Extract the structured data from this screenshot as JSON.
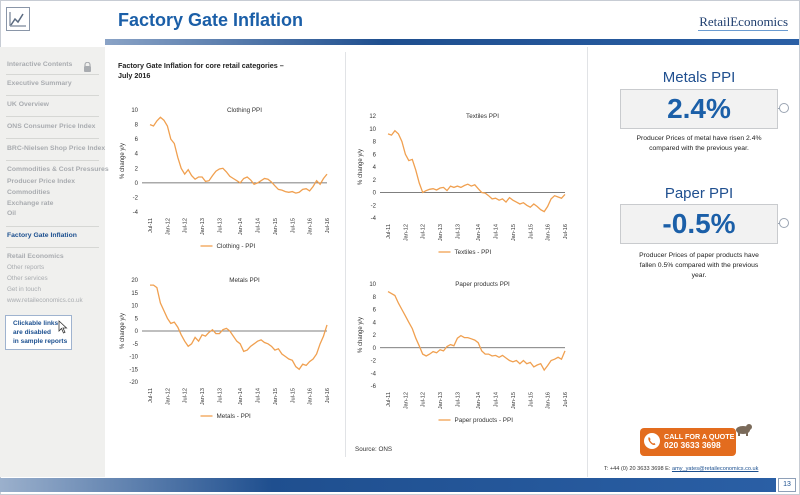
{
  "header": {
    "title": "Factory Gate Inflation",
    "brand_a": "Retail",
    "brand_b": "Economics"
  },
  "sidebar": {
    "items": [
      {
        "label": "Interactive Contents",
        "style": "head"
      },
      {
        "label": "Executive Summary",
        "style": "head"
      },
      {
        "label": "UK Overview",
        "style": "head"
      },
      {
        "label": "ONS Consumer Price Index",
        "style": "head"
      },
      {
        "label": "BRC-Nielsen Shop Price Index",
        "style": "head"
      },
      {
        "label": "Commodities & Cost Pressures",
        "style": "head"
      },
      {
        "label": "Producer Price Index",
        "style": "head"
      },
      {
        "label": "Commodities",
        "style": "head"
      },
      {
        "label": "Exchange rate",
        "style": "head"
      },
      {
        "label": "Oil",
        "style": "head"
      },
      {
        "label": "Factory Gate Inflation",
        "style": "active"
      },
      {
        "label": "Retail Economics",
        "style": "head"
      },
      {
        "label": "Other reports",
        "style": "sub"
      },
      {
        "label": "Other services",
        "style": "sub"
      },
      {
        "label": "Get in touch",
        "style": "sub"
      },
      {
        "label": "www.retaileconomics.co.uk",
        "style": "sub"
      }
    ],
    "note_line1": "Clickable links",
    "note_line2": "are disabled",
    "note_line3": "in sample reports"
  },
  "main": {
    "heading_line1": "Factory Gate Inflation for core retail categories –",
    "heading_line2": "July 2016",
    "source": "Source: ONS"
  },
  "chart_data": [
    {
      "type": "line",
      "title": "Clothing PPI",
      "ylabel": "% change y/y",
      "ylim": [
        -4,
        10
      ],
      "yticks": [
        10,
        8,
        6,
        4,
        2,
        0,
        -2,
        -4
      ],
      "xticks": [
        "Jul-11",
        "Jan-12",
        "Jul-12",
        "Jan-13",
        "Jul-13",
        "Jan-14",
        "Jul-14",
        "Jan-15",
        "Jul-15",
        "Jan-16",
        "Jul-16"
      ],
      "series": [
        {
          "name": "Clothing - PPI",
          "color": "#f0a050",
          "values": [
            8.0,
            7.8,
            8.5,
            9.0,
            8.6,
            7.8,
            6.0,
            5.4,
            3.5,
            2.0,
            1.2,
            1.8,
            1.0,
            0.5,
            0.8,
            0.8,
            0.2,
            0.3,
            1.0,
            1.6,
            1.9,
            2.0,
            1.5,
            0.9,
            0.6,
            0.3,
            0.0,
            0.6,
            0.8,
            0.4,
            -0.2,
            0.0,
            0.3,
            0.6,
            0.5,
            0.1,
            -0.4,
            -0.9,
            -1.0,
            -1.2,
            -1.3,
            -1.2,
            -1.4,
            -1.3,
            -0.9,
            -0.8,
            -1.1,
            -0.5,
            0.3,
            -0.2,
            0.6,
            1.2
          ]
        }
      ]
    },
    {
      "type": "line",
      "title": "Textiles PPI",
      "ylabel": "% change y/y",
      "ylim": [
        -4,
        12
      ],
      "yticks": [
        12,
        10,
        8,
        6,
        4,
        2,
        0,
        -2,
        -4
      ],
      "xticks": [
        "Jul-11",
        "Jan-12",
        "Jul-12",
        "Jan-13",
        "Jul-13",
        "Jan-14",
        "Jul-14",
        "Jan-15",
        "Jul-15",
        "Jan-16",
        "Jul-16"
      ],
      "series": [
        {
          "name": "Textiles - PPI",
          "color": "#f0a050",
          "values": [
            9.2,
            9.0,
            9.7,
            9.2,
            8.0,
            6.0,
            5.0,
            5.2,
            3.5,
            1.5,
            0.0,
            0.3,
            0.5,
            0.6,
            0.4,
            0.7,
            0.8,
            0.3,
            1.0,
            0.8,
            1.0,
            0.8,
            1.1,
            1.3,
            1.0,
            1.2,
            0.6,
            0.0,
            -0.1,
            -0.5,
            -1.0,
            -0.9,
            -1.2,
            -1.0,
            -1.5,
            -0.8,
            -1.2,
            -1.5,
            -1.8,
            -1.6,
            -2.0,
            -2.3,
            -1.8,
            -2.2,
            -2.7,
            -3.0,
            -2.2,
            -1.0,
            -0.5,
            -0.7,
            -0.9,
            -0.3
          ]
        }
      ]
    },
    {
      "type": "line",
      "title": "Metals PPI",
      "ylabel": "% change y/y",
      "ylim": [
        -20,
        20
      ],
      "yticks": [
        20,
        15,
        10,
        5,
        0,
        -5,
        -10,
        -15,
        -20
      ],
      "xticks": [
        "Jul-11",
        "Jan-12",
        "Jul-12",
        "Jan-13",
        "Jul-13",
        "Jan-14",
        "Jul-14",
        "Jan-15",
        "Jul-15",
        "Jan-16",
        "Jul-16"
      ],
      "series": [
        {
          "name": "Metals - PPI",
          "color": "#f0a050",
          "values": [
            18.0,
            18.0,
            17.0,
            11.0,
            8.0,
            5.0,
            3.0,
            3.5,
            1.5,
            -1.5,
            -4.0,
            -6.0,
            -5.0,
            -2.5,
            -4.0,
            -1.5,
            -2.0,
            -0.5,
            0.5,
            -1.0,
            -1.0,
            0.5,
            1.0,
            0.0,
            -2.0,
            -4.0,
            -5.0,
            -8.0,
            -7.5,
            -6.0,
            -5.0,
            -4.0,
            -3.5,
            -4.5,
            -5.0,
            -6.0,
            -7.5,
            -7.0,
            -9.0,
            -10.0,
            -11.0,
            -11.5,
            -14.0,
            -15.0,
            -13.0,
            -13.5,
            -12.0,
            -11.0,
            -9.0,
            -5.0,
            -2.0,
            2.4
          ]
        }
      ]
    },
    {
      "type": "line",
      "title": "Paper products PPI",
      "ylabel": "% change y/y",
      "ylim": [
        -6,
        10
      ],
      "yticks": [
        10,
        8,
        6,
        4,
        2,
        0,
        -2,
        -4,
        -6
      ],
      "xticks": [
        "Jul-11",
        "Jan-12",
        "Jul-12",
        "Jan-13",
        "Jul-13",
        "Jan-14",
        "Jul-14",
        "Jan-15",
        "Jul-15",
        "Jan-16",
        "Jul-16"
      ],
      "series": [
        {
          "name": "Paper products - PPI",
          "color": "#f0a050",
          "values": [
            8.8,
            8.5,
            8.2,
            7.0,
            6.0,
            5.0,
            4.0,
            3.0,
            1.5,
            0.3,
            -1.0,
            -1.3,
            -1.0,
            -0.6,
            -0.8,
            -0.3,
            -0.5,
            0.2,
            0.5,
            0.3,
            1.5,
            1.9,
            1.6,
            1.6,
            1.4,
            1.2,
            0.8,
            -0.5,
            -1.0,
            -1.0,
            -1.3,
            -1.2,
            -1.5,
            -1.2,
            -1.6,
            -2.0,
            -2.2,
            -2.0,
            -2.5,
            -2.0,
            -2.5,
            -2.3,
            -3.0,
            -2.7,
            -2.5,
            -3.5,
            -2.8,
            -2.0,
            -1.8,
            -1.5,
            -1.8,
            -0.5
          ]
        }
      ]
    }
  ],
  "kpis": [
    {
      "label": "Metals PPI",
      "value": "2.4%",
      "note_line1": "Producer Prices of metal have risen 2.4%",
      "note_line2": "compared with the previous year."
    },
    {
      "label": "Paper PPI",
      "value": "-0.5%",
      "note_line1": "Producer Prices of paper products have",
      "note_line2": "fallen 0.5% compared with the previous",
      "note_line3": "year."
    }
  ],
  "cta": {
    "line1": "CALL FOR A QUOTE",
    "line2": "020 3633 3698"
  },
  "contact": {
    "text": "T: +44 (0) 20 3633 3698   E: ",
    "email": "amy_yates@retaileconomics.co.uk"
  },
  "page_number": "13",
  "colors": {
    "accent": "#1b5fa8",
    "line": "#f0a050",
    "cta": "#e36c1e"
  }
}
